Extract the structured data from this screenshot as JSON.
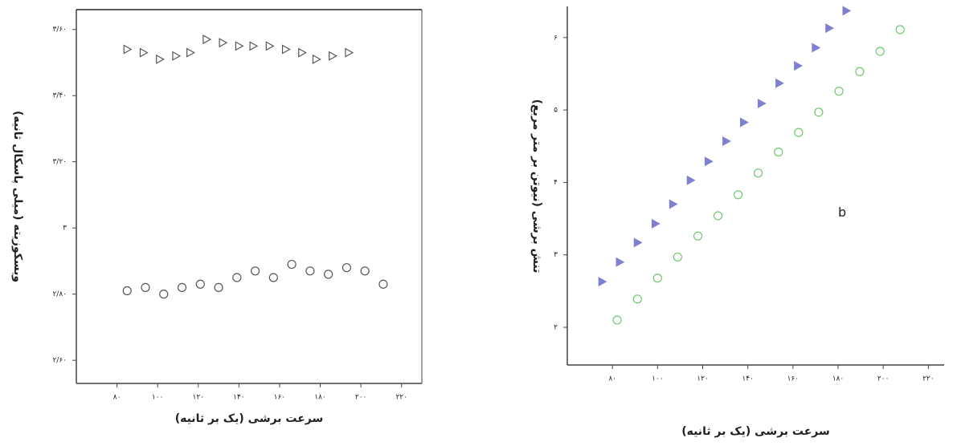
{
  "chart_data": [
    {
      "type": "scatter",
      "x_label": "سرعت برشی (یک بر ثانیه)",
      "y_label": "ویسکوزیته (میلی پاسکال ثانیه)",
      "xlim": [
        60,
        230
      ],
      "ylim": [
        2.53,
        3.66
      ],
      "xticks": [
        {
          "value": 80,
          "label": "۸۰"
        },
        {
          "value": 100,
          "label": "۱۰۰"
        },
        {
          "value": 120,
          "label": "۱۲۰"
        },
        {
          "value": 140,
          "label": "۱۴۰"
        },
        {
          "value": 160,
          "label": "۱۶۰"
        },
        {
          "value": 180,
          "label": "۱۸۰"
        },
        {
          "value": 200,
          "label": "۲۰۰"
        },
        {
          "value": 220,
          "label": "۲۲۰"
        }
      ],
      "yticks": [
        {
          "value": 2.6,
          "label": "۲/۶۰"
        },
        {
          "value": 2.8,
          "label": "۲/۸۰"
        },
        {
          "value": 3,
          "label": "۳"
        },
        {
          "value": 3.2,
          "label": "۳/۲۰"
        },
        {
          "value": 3.4,
          "label": "۳/۴۰"
        },
        {
          "value": 3.6,
          "label": "۳/۶۰"
        }
      ],
      "frame": true,
      "series": [
        {
          "marker": "triangle",
          "filled": false,
          "color": "#555555",
          "x": [
            85,
            93,
            101,
            109,
            116,
            124,
            132,
            140,
            147,
            155,
            163,
            171,
            178,
            186,
            194
          ],
          "values": [
            3.54,
            3.53,
            3.51,
            3.52,
            3.53,
            3.57,
            3.56,
            3.55,
            3.55,
            3.55,
            3.54,
            3.53,
            3.51,
            3.52,
            3.53
          ]
        },
        {
          "marker": "circle",
          "filled": false,
          "color": "#555555",
          "x": [
            85,
            94,
            103,
            112,
            121,
            130,
            139,
            148,
            157,
            166,
            175,
            184,
            193,
            202,
            211
          ],
          "values": [
            2.81,
            2.82,
            2.8,
            2.82,
            2.83,
            2.82,
            2.85,
            2.87,
            2.85,
            2.89,
            2.87,
            2.86,
            2.88,
            2.87,
            2.83
          ]
        }
      ]
    },
    {
      "type": "scatter",
      "x_label": "سرعت برشی (یک بر ثانیه)",
      "y_label": "تنش برشی (نیوتن بر متر مربع)",
      "xlim": [
        60,
        227
      ],
      "ylim": [
        1.48,
        6.43
      ],
      "xticks": [
        {
          "value": 80,
          "label": "۸۰"
        },
        {
          "value": 100,
          "label": "۱۰۰"
        },
        {
          "value": 120,
          "label": "۱۲۰"
        },
        {
          "value": 140,
          "label": "۱۴۰"
        },
        {
          "value": 160,
          "label": "۱۶۰"
        },
        {
          "value": 180,
          "label": "۱۸۰"
        },
        {
          "value": 200,
          "label": "۲۰۰"
        },
        {
          "value": 220,
          "label": "۲۲۰"
        }
      ],
      "yticks": [
        {
          "value": 2,
          "label": "۲"
        },
        {
          "value": 3,
          "label": "۳"
        },
        {
          "value": 4,
          "label": "۴"
        },
        {
          "value": 5,
          "label": "۵"
        },
        {
          "value": 6,
          "label": "۶"
        }
      ],
      "frame": false,
      "annotations": [
        {
          "text": "b",
          "x": 181.8,
          "y": 3.58
        }
      ],
      "series": [
        {
          "marker": "triangle",
          "filled": true,
          "color": "#8080d0",
          "x": [
            75.4,
            83.2,
            91.1,
            99,
            106.8,
            114.6,
            122.5,
            130.4,
            138.2,
            146,
            153.9,
            162.1,
            170,
            176,
            183.6
          ],
          "values": [
            2.63,
            2.9,
            3.17,
            3.43,
            3.7,
            4.03,
            4.29,
            4.57,
            4.83,
            5.09,
            5.37,
            5.61,
            5.86,
            6.13,
            6.37
          ]
        },
        {
          "marker": "circle",
          "filled": false,
          "color": "#70c870",
          "x": [
            82.1,
            91.1,
            100,
            108.9,
            117.9,
            126.8,
            135.7,
            144.6,
            153.6,
            162.5,
            171.4,
            180.4,
            189.6,
            198.6,
            207.5
          ],
          "values": [
            2.1,
            2.39,
            2.68,
            2.97,
            3.26,
            3.54,
            3.83,
            4.13,
            4.42,
            4.69,
            4.97,
            5.26,
            5.53,
            5.81,
            6.11
          ]
        }
      ]
    }
  ]
}
